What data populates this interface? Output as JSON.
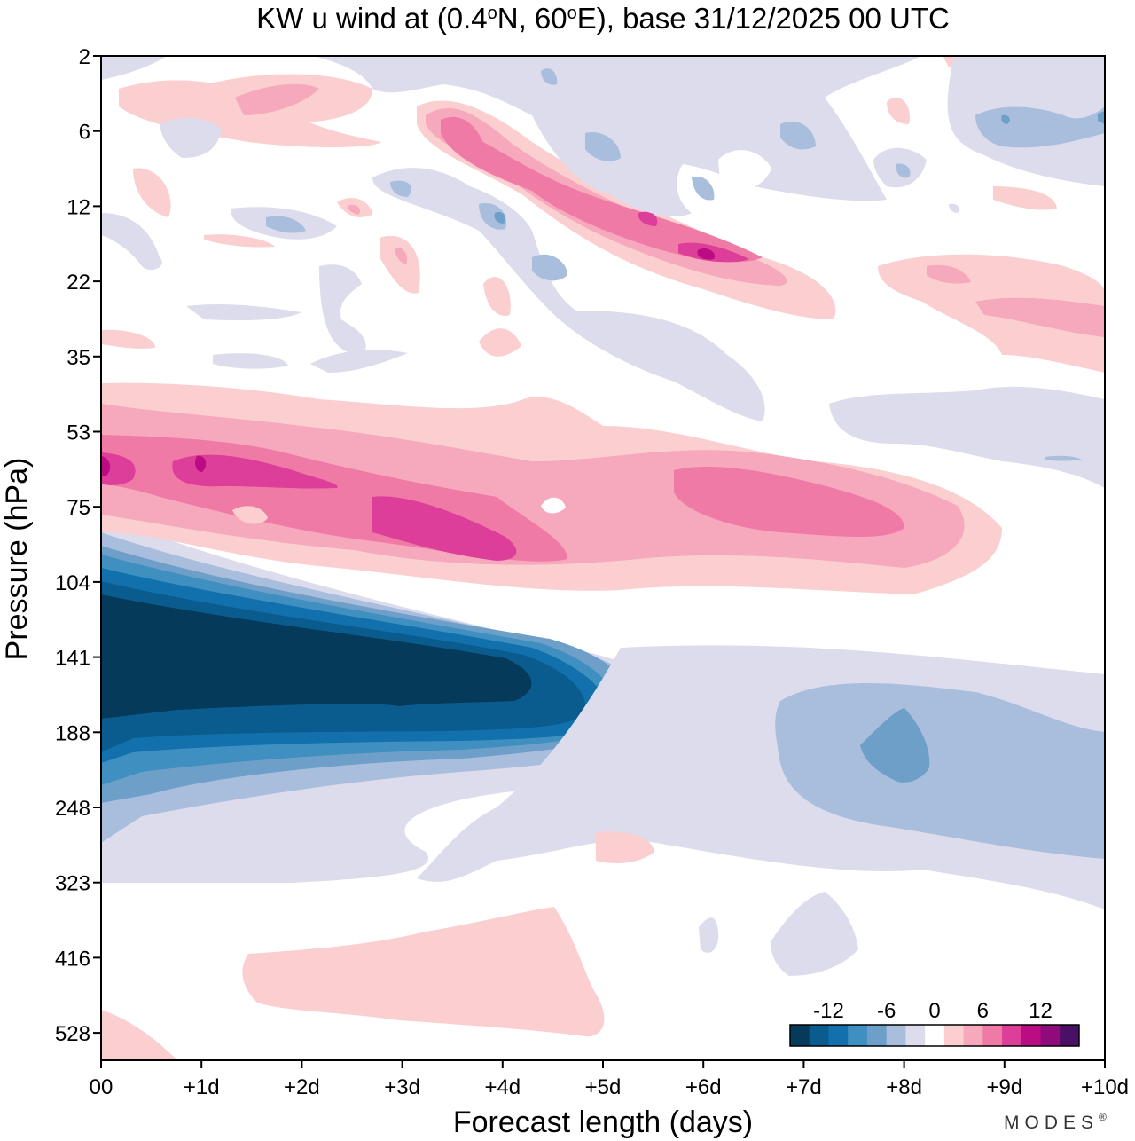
{
  "chart_data": {
    "type": "heatmap",
    "title": "KW u wind at (0.4°N, 60°E),  base 31/12/2025  00 UTC",
    "title_parts": {
      "prefix": "KW u wind at (0.4",
      "deg1": "o",
      "mid": "N, 60",
      "deg2": "o",
      "suffix": "E),  base 31/12/2025  00 UTC"
    },
    "xlabel": "Forecast length (days)",
    "ylabel": "Pressure (hPa)",
    "x_range_days": [
      0,
      10
    ],
    "x_tick_labels": [
      "00",
      "+1d",
      "+2d",
      "+3d",
      "+4d",
      "+5d",
      "+6d",
      "+7d",
      "+8d",
      "+9d",
      "+10d"
    ],
    "y_tick_labels": [
      "2",
      "6",
      "12",
      "22",
      "35",
      "53",
      "75",
      "104",
      "141",
      "188",
      "248",
      "323",
      "416",
      "528"
    ],
    "colorbar": {
      "tick_labels": [
        "-12",
        "-6",
        "0",
        "6",
        "12"
      ],
      "tick_values": [
        -12,
        -6,
        0,
        6,
        12
      ],
      "levels": [
        -16,
        -14,
        -12,
        -10,
        -8,
        -6,
        -4,
        -2,
        2,
        4,
        6,
        8,
        10,
        12,
        14,
        16
      ],
      "colors": [
        "#063a5a",
        "#0b5c8e",
        "#1271ac",
        "#3f8fc0",
        "#6e9fc9",
        "#a9bedc",
        "#dcdcec",
        "#ffffff",
        "#fbcfd0",
        "#f6a8bc",
        "#f07aa6",
        "#dc3e99",
        "#bb0c84",
        "#8f0a7a",
        "#4a1066"
      ]
    },
    "features": [
      {
        "name": "upper-tropospheric easterlies core",
        "pressure_hPa": [
          104,
          188
        ],
        "days": [
          0,
          4.3
        ],
        "min_value": -16
      },
      {
        "name": "westerly band near 53-104 hPa",
        "pressure_hPa": [
          53,
          104
        ],
        "days": [
          0,
          9.2
        ],
        "max_value": 12
      },
      {
        "name": "descending westerly band aloft",
        "pressure_hPa": [
          6,
          22
        ],
        "days": [
          3.3,
          7.0
        ],
        "max_value": 12
      },
      {
        "name": "easterly patch near 188 hPa at +8d",
        "pressure_hPa": [
          170,
          220
        ],
        "days": [
          7.4,
          8.3
        ],
        "min_value": -8
      },
      {
        "name": "weak westerlies near 416-528 hPa",
        "pressure_hPa": [
          360,
          528
        ],
        "days": [
          1.4,
          5.0
        ],
        "max_value": 4
      }
    ]
  },
  "branding": {
    "text": "MODES",
    "mark": "®"
  }
}
